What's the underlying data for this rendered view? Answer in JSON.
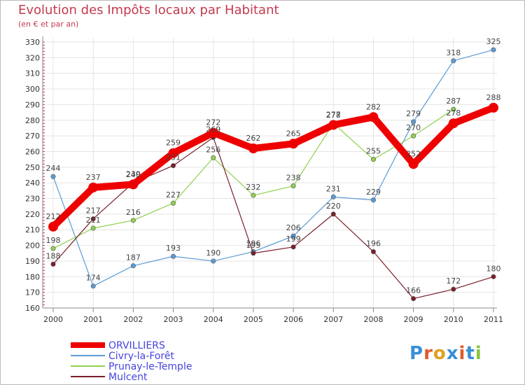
{
  "title": "Evolution des Impôts locaux par Habitant",
  "subtitle": "(en € et par an)",
  "logo": {
    "text": "Proxiti",
    "colors": [
      "#3a8fd6",
      "#e05a2a",
      "#e0a020",
      "#3a8fd6",
      "#e05a2a",
      "#3a8fd6",
      "#8bc43f"
    ]
  },
  "chart_data": {
    "type": "line",
    "x": [
      "2000",
      "2001",
      "2002",
      "2003",
      "2004",
      "2005",
      "2006",
      "2007",
      "2008",
      "2009",
      "2010",
      "2011"
    ],
    "ylim": [
      160,
      330
    ],
    "yticks": [
      160,
      170,
      180,
      190,
      200,
      210,
      220,
      230,
      240,
      250,
      260,
      270,
      280,
      290,
      300,
      310,
      320,
      330
    ],
    "grid": true,
    "legend_position": "bottom-left",
    "series": [
      {
        "name": "ORVILLIERS",
        "color": "#ee0000",
        "width": 10,
        "marker": 7,
        "values": [
          212,
          237,
          239,
          259,
          272,
          262,
          265,
          277,
          282,
          252,
          278,
          288
        ]
      },
      {
        "name": "Civry-la-Forêt",
        "color": "#5b9bd5",
        "width": 1.2,
        "marker": 3.2,
        "values": [
          244,
          174,
          187,
          193,
          190,
          196,
          206,
          231,
          229,
          279,
          318,
          325
        ]
      },
      {
        "name": "Prunay-le-Temple",
        "color": "#8fd14f",
        "width": 1.2,
        "marker": 3.2,
        "values": [
          198,
          211,
          216,
          227,
          256,
          232,
          238,
          278,
          255,
          270,
          287,
          null
        ]
      },
      {
        "name": "Mulcent",
        "color": "#7b1f2b",
        "width": 1.2,
        "marker": 3.2,
        "values": [
          188,
          217,
          240,
          251,
          269,
          195,
          199,
          220,
          196,
          166,
          172,
          180
        ]
      }
    ]
  }
}
